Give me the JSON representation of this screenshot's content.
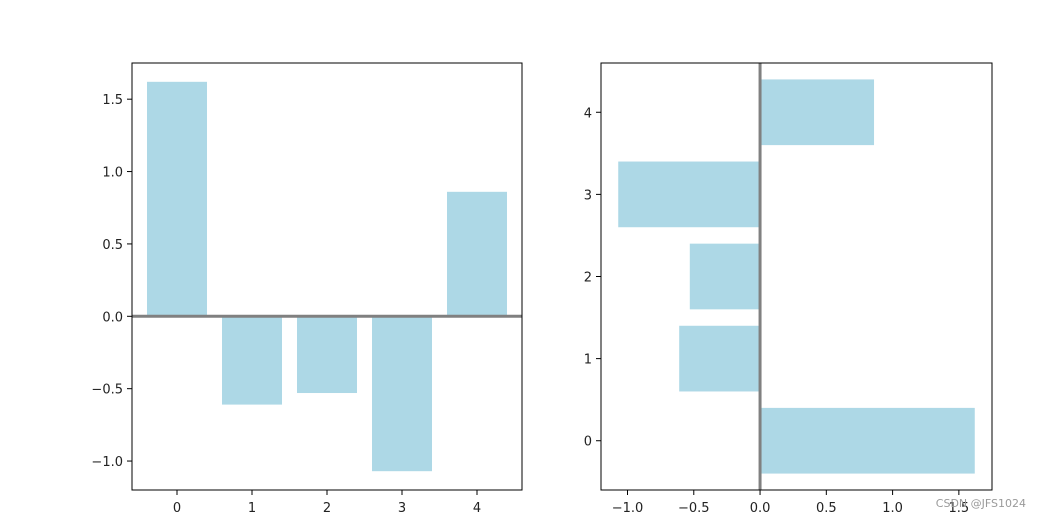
{
  "chart_data": [
    {
      "type": "bar",
      "orientation": "vertical",
      "categories": [
        0,
        1,
        2,
        3,
        4
      ],
      "values": [
        1.62,
        -0.61,
        -0.53,
        -1.07,
        0.86
      ],
      "xlim": [
        -0.6,
        4.6
      ],
      "ylim": [
        -1.2,
        1.75
      ],
      "xticks": [
        0,
        1,
        2,
        3,
        4
      ],
      "yticks": [
        -1.0,
        -0.5,
        0.0,
        0.5,
        1.0,
        1.5
      ],
      "ytick_labels": [
        "−1.0",
        "−0.5",
        "0.0",
        "0.5",
        "1.0",
        "1.5"
      ],
      "xtick_labels": [
        "0",
        "1",
        "2",
        "3",
        "4"
      ],
      "bar_width": 0.8,
      "bar_color": "#add8e6",
      "baseline": 0,
      "baseline_color": "#808080",
      "grid": false
    },
    {
      "type": "bar",
      "orientation": "horizontal",
      "categories": [
        0,
        1,
        2,
        3,
        4
      ],
      "values": [
        1.62,
        -0.61,
        -0.53,
        -1.07,
        0.86
      ],
      "xlim": [
        -1.2,
        1.75
      ],
      "ylim": [
        -0.6,
        4.6
      ],
      "xticks": [
        -1.0,
        -0.5,
        0.0,
        0.5,
        1.0,
        1.5
      ],
      "xtick_labels": [
        "−1.0",
        "−0.5",
        "0.0",
        "0.5",
        "1.0",
        "1.5"
      ],
      "yticks": [
        0,
        1,
        2,
        3,
        4
      ],
      "ytick_labels": [
        "0",
        "1",
        "2",
        "3",
        "4"
      ],
      "bar_height": 0.8,
      "bar_color": "#add8e6",
      "baseline": 0,
      "baseline_color": "#808080",
      "grid": false
    }
  ],
  "watermark": "CSDN @JFS1024"
}
